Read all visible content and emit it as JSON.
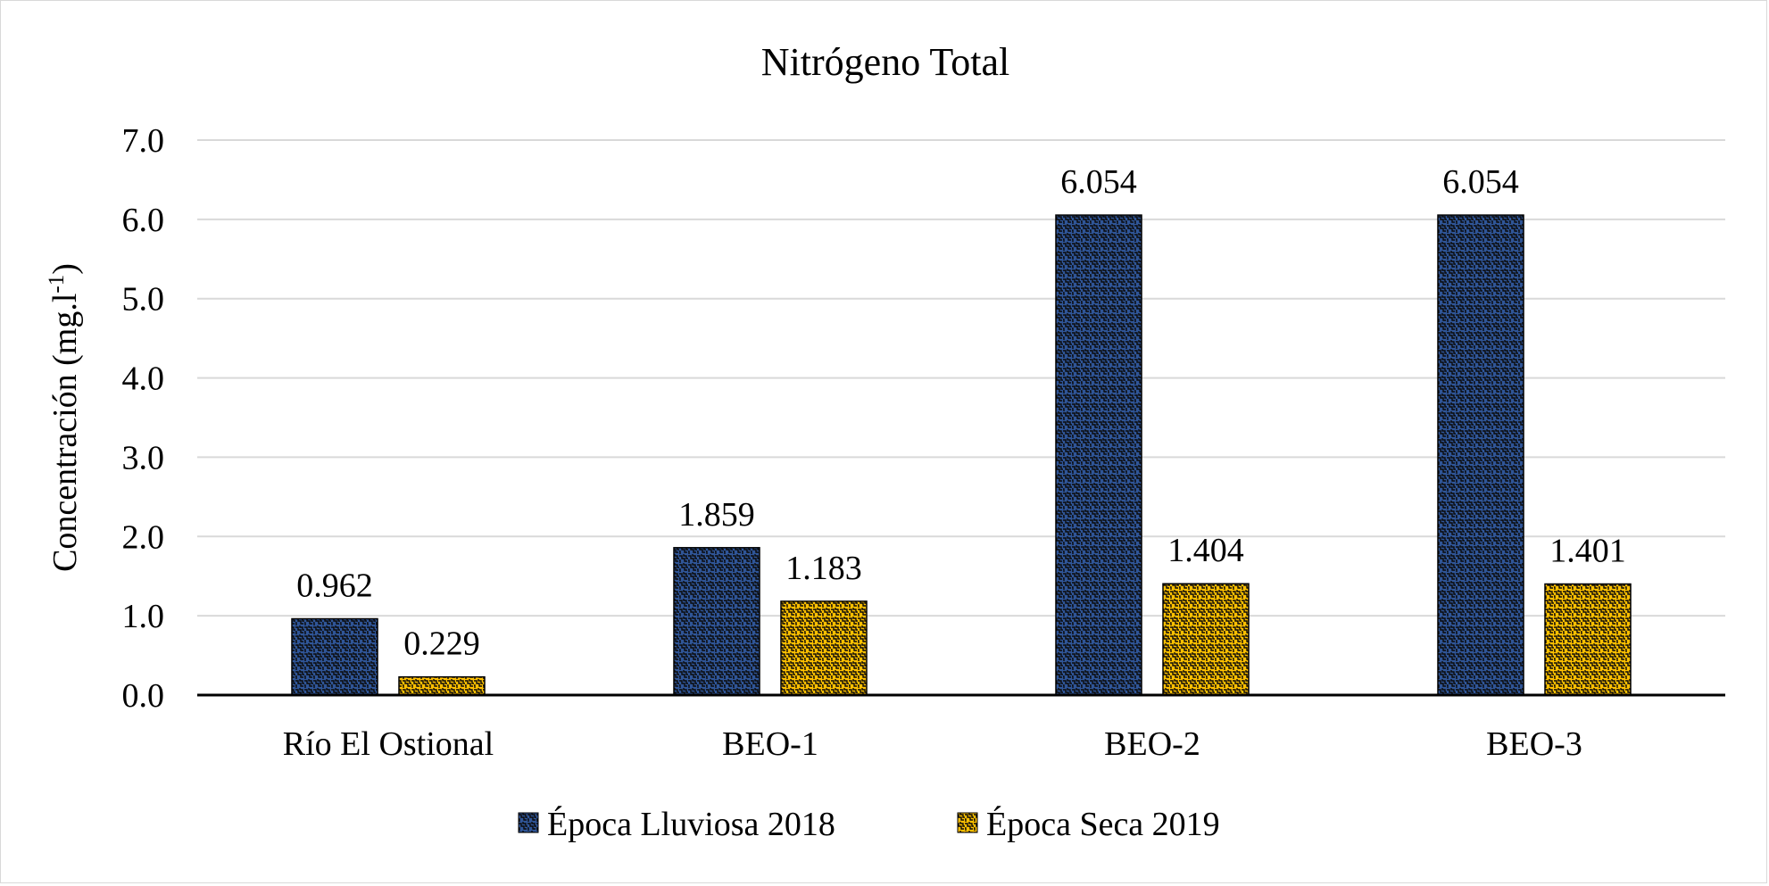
{
  "chart_data": {
    "type": "bar",
    "title": "Nitrógeno Total",
    "ylabel": "Concentración (mg.l",
    "ylabel_superscript": "-1",
    "ylabel_close": ")",
    "xlabel": "",
    "ylim": [
      0,
      7
    ],
    "y_ticks": [
      "0.0",
      "1.0",
      "2.0",
      "3.0",
      "4.0",
      "5.0",
      "6.0",
      "7.0"
    ],
    "y_tick_values": [
      0,
      1,
      2,
      3,
      4,
      5,
      6,
      7
    ],
    "grid": true,
    "legend_position": "bottom",
    "categories": [
      "Río El Ostional",
      "BEO-1",
      "BEO-2",
      "BEO-3"
    ],
    "series": [
      {
        "name": "Época Lluviosa 2018",
        "color": "#2f5597",
        "pattern_color": "#0a0a0a",
        "values": [
          0.962,
          1.859,
          6.054,
          6.054
        ],
        "labels": [
          "0.962",
          "1.859",
          "6.054",
          "6.054"
        ]
      },
      {
        "name": "Época Seca 2019",
        "color": "#ffc000",
        "pattern_color": "#0a0a0a",
        "values": [
          0.229,
          1.183,
          1.404,
          1.401
        ],
        "labels": [
          "0.229",
          "1.183",
          "1.404",
          "1.401"
        ]
      }
    ]
  }
}
